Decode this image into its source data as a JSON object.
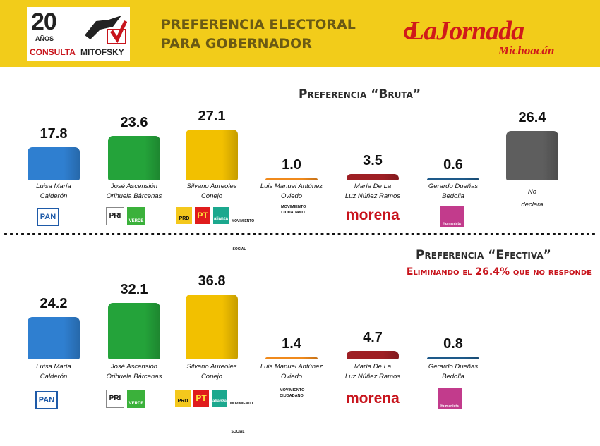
{
  "header": {
    "logo_number": "20",
    "logo_years": "AÑOS",
    "logo_brand_1": "CONSULTA",
    "logo_brand_2": "MITOFSKY",
    "title_line1": "PREFERENCIA ELECTORAL",
    "title_line2": "PARA GOBERNADOR",
    "newspaper": "LaJornada",
    "newspaper_sub": "Michoacán"
  },
  "parties": {
    "pan": "PAN",
    "pri": "PRI",
    "verde": "VERDE",
    "prd": "PRD",
    "pt": "PT",
    "alianza": "alianza",
    "movimiento_social": "MOVIMIENTO SOCIAL",
    "mc": "MOVIMIENTO CIUDADANO",
    "morena": "morena",
    "humanista": "Humanista"
  },
  "colors": {
    "pan": "#2f7fd0",
    "pri_verde": "#24a33a",
    "prd": "#f2c000",
    "mc": "#f08a1c",
    "morena": "#9e1f24",
    "humanista": "#1e5a8a",
    "no_declara": "#5e5e5e",
    "header": "#f2cc1a"
  },
  "chart_data": [
    {
      "type": "bar",
      "title": "Preferencia “Bruta”",
      "categories": [
        "Luisa María Calderón",
        "José Ascensión Orihuela Bárcenas",
        "Silvano Aureoles Conejo",
        "Luis Manuel Antúnez Oviedo",
        "María De La Luz Núñez Ramos",
        "Gerardo Dueñas Bedolla",
        "No declara"
      ],
      "category_lines": [
        [
          "Luisa  María",
          "Calderón"
        ],
        [
          "José Ascensión",
          "Orihuela Bárcenas"
        ],
        [
          "Silvano Aureoles",
          "Conejo"
        ],
        [
          "Luis Manuel Antúnez",
          "Oviedo"
        ],
        [
          "María De La",
          "Luz Núñez Ramos"
        ],
        [
          "Gerardo Dueñas",
          "Bedolla"
        ],
        [
          "No",
          "declara"
        ]
      ],
      "values": [
        17.8,
        23.6,
        27.1,
        1.0,
        3.5,
        0.6,
        26.4
      ],
      "value_labels": [
        "17.8",
        "23.6",
        "27.1",
        "1.0",
        "3.5",
        "0.6",
        "26.4"
      ],
      "ylim": [
        0,
        27.1
      ],
      "grid": false,
      "legend": "none"
    },
    {
      "type": "bar",
      "title": "Preferencia “Efectiva”",
      "subtitle": "Eliminando el 26.4% que no responde",
      "categories": [
        "Luisa María Calderón",
        "José Ascensión Orihuela Bárcenas",
        "Silvano Aureoles Conejo",
        "Luis Manuel Antúnez Oviedo",
        "María De La Luz Núñez Ramos",
        "Gerardo Dueñas Bedolla"
      ],
      "category_lines": [
        [
          "Luisa  María",
          "Calderón"
        ],
        [
          "José Ascensión",
          "Orihuela Bárcenas"
        ],
        [
          "Silvano Aureoles",
          "Conejo"
        ],
        [
          "Luis Manuel Antúnez",
          "Oviedo"
        ],
        [
          "María De La",
          "Luz Núñez Ramos"
        ],
        [
          "Gerardo Dueñas",
          "Bedolla"
        ]
      ],
      "values": [
        24.2,
        32.1,
        36.8,
        1.4,
        4.7,
        0.8
      ],
      "value_labels": [
        "24.2",
        "32.1",
        "36.8",
        "1.4",
        "4.7",
        "0.8"
      ],
      "ylim": [
        0,
        36.8
      ],
      "grid": false,
      "legend": "none"
    }
  ]
}
